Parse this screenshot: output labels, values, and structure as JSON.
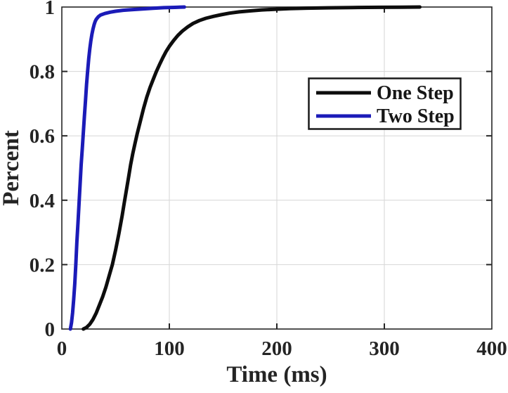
{
  "chart_data": {
    "type": "line",
    "subtype": "empirical-cdf",
    "title": "",
    "xlabel": "Time (ms)",
    "ylabel": "Percent",
    "xlim": [
      0,
      400
    ],
    "ylim": [
      0,
      1
    ],
    "x_ticks": [
      0,
      100,
      200,
      300,
      400
    ],
    "x_tick_labels": [
      "0",
      "100",
      "200",
      "300",
      "400"
    ],
    "y_ticks": [
      0,
      0.2,
      0.4,
      0.6,
      0.8,
      1
    ],
    "y_tick_labels": [
      "0",
      "0.2",
      "0.4",
      "0.6",
      "0.8",
      "1"
    ],
    "grid": true,
    "legend": {
      "position": "upper-right-inside",
      "entries": [
        "One Step",
        "Two Step"
      ]
    },
    "series": [
      {
        "name": "One Step",
        "color": "#0d0d0d",
        "points": [
          [
            20,
            0
          ],
          [
            23,
            0.005
          ],
          [
            26,
            0.015
          ],
          [
            29,
            0.03
          ],
          [
            32,
            0.05
          ],
          [
            35,
            0.075
          ],
          [
            38,
            0.1
          ],
          [
            41,
            0.13
          ],
          [
            44,
            0.165
          ],
          [
            47,
            0.2
          ],
          [
            50,
            0.245
          ],
          [
            53,
            0.295
          ],
          [
            56,
            0.35
          ],
          [
            58,
            0.39
          ],
          [
            60,
            0.43
          ],
          [
            62,
            0.47
          ],
          [
            64,
            0.51
          ],
          [
            66,
            0.545
          ],
          [
            68,
            0.575
          ],
          [
            70,
            0.605
          ],
          [
            73,
            0.645
          ],
          [
            76,
            0.685
          ],
          [
            79,
            0.72
          ],
          [
            82,
            0.75
          ],
          [
            85,
            0.775
          ],
          [
            88,
            0.8
          ],
          [
            91,
            0.822
          ],
          [
            94,
            0.843
          ],
          [
            97,
            0.862
          ],
          [
            100,
            0.878
          ],
          [
            104,
            0.896
          ],
          [
            108,
            0.912
          ],
          [
            112,
            0.925
          ],
          [
            117,
            0.938
          ],
          [
            122,
            0.949
          ],
          [
            128,
            0.958
          ],
          [
            134,
            0.965
          ],
          [
            141,
            0.971
          ],
          [
            148,
            0.976
          ],
          [
            156,
            0.981
          ],
          [
            165,
            0.985
          ],
          [
            175,
            0.988
          ],
          [
            186,
            0.991
          ],
          [
            198,
            0.993
          ],
          [
            212,
            0.995
          ],
          [
            228,
            0.9965
          ],
          [
            248,
            0.9975
          ],
          [
            270,
            0.9985
          ],
          [
            295,
            0.9992
          ],
          [
            315,
            0.9996
          ],
          [
            333,
            1.0
          ]
        ]
      },
      {
        "name": "Two Step",
        "color": "#1b1bb8",
        "points": [
          [
            8,
            0
          ],
          [
            9,
            0.02
          ],
          [
            10,
            0.05
          ],
          [
            11,
            0.09
          ],
          [
            12,
            0.14
          ],
          [
            13,
            0.2
          ],
          [
            14,
            0.27
          ],
          [
            15,
            0.33
          ],
          [
            16,
            0.39
          ],
          [
            17,
            0.45
          ],
          [
            18,
            0.51
          ],
          [
            19,
            0.56
          ],
          [
            20,
            0.61
          ],
          [
            21,
            0.66
          ],
          [
            22,
            0.71
          ],
          [
            23,
            0.76
          ],
          [
            24,
            0.8
          ],
          [
            25,
            0.84
          ],
          [
            26,
            0.87
          ],
          [
            27,
            0.895
          ],
          [
            28,
            0.915
          ],
          [
            29,
            0.932
          ],
          [
            30,
            0.945
          ],
          [
            31,
            0.955
          ],
          [
            32,
            0.962
          ],
          [
            34,
            0.97
          ],
          [
            36,
            0.975
          ],
          [
            40,
            0.98
          ],
          [
            45,
            0.984
          ],
          [
            50,
            0.987
          ],
          [
            57,
            0.99
          ],
          [
            65,
            0.992
          ],
          [
            75,
            0.994
          ],
          [
            85,
            0.996
          ],
          [
            95,
            0.998
          ],
          [
            105,
            0.999
          ],
          [
            114,
            1.0
          ]
        ]
      }
    ],
    "colors": {
      "grid": "#d6d6d6",
      "frame": "#262626",
      "background": "#ffffff",
      "text": "#242424"
    }
  }
}
